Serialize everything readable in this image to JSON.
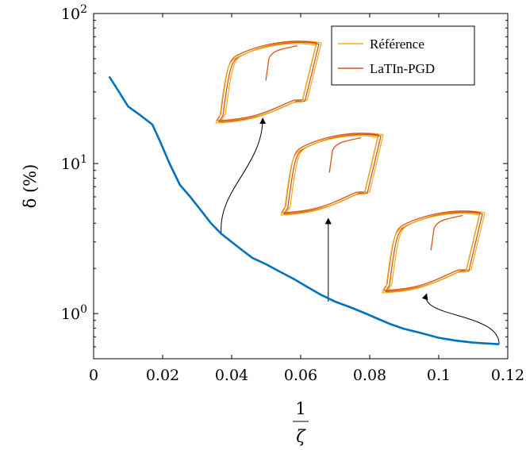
{
  "chart_data": {
    "type": "line",
    "title": "",
    "xlabel_num": "1",
    "xlabel_den": "ζ",
    "ylabel": "δ (%)",
    "x_scale": "linear",
    "y_scale": "log",
    "xlim": [
      0,
      0.12
    ],
    "ylim": [
      0.5,
      100
    ],
    "x_ticks": [
      "0",
      "0.02",
      "0.04",
      "0.06",
      "0.08",
      "0.1",
      "0.12"
    ],
    "x_tick_values": [
      0,
      0.02,
      0.04,
      0.06,
      0.08,
      0.1,
      0.12
    ],
    "y_ticks": [
      {
        "value": 1,
        "base": "10",
        "exp": "0"
      },
      {
        "value": 10,
        "base": "10",
        "exp": "1"
      },
      {
        "value": 100,
        "base": "10",
        "exp": "2"
      }
    ],
    "grid": false,
    "legend_position": "top-right",
    "series": [
      {
        "color": "#0072BD",
        "points": [
          [
            0.0045,
            38
          ],
          [
            0.007,
            31
          ],
          [
            0.01,
            24
          ],
          [
            0.0135,
            21
          ],
          [
            0.017,
            18.2
          ],
          [
            0.019,
            14.5
          ],
          [
            0.022,
            10
          ],
          [
            0.025,
            7.2
          ],
          [
            0.028,
            6
          ],
          [
            0.031,
            4.9
          ],
          [
            0.034,
            4
          ],
          [
            0.037,
            3.4
          ],
          [
            0.04,
            3
          ],
          [
            0.043,
            2.65
          ],
          [
            0.046,
            2.35
          ],
          [
            0.05,
            2.13
          ],
          [
            0.054,
            1.9
          ],
          [
            0.058,
            1.7
          ],
          [
            0.062,
            1.5
          ],
          [
            0.066,
            1.33
          ],
          [
            0.07,
            1.2
          ],
          [
            0.074,
            1.11
          ],
          [
            0.078,
            1.02
          ],
          [
            0.082,
            0.93
          ],
          [
            0.086,
            0.85
          ],
          [
            0.09,
            0.79
          ],
          [
            0.095,
            0.74
          ],
          [
            0.1,
            0.69
          ],
          [
            0.105,
            0.66
          ],
          [
            0.11,
            0.64
          ],
          [
            0.1175,
            0.625
          ]
        ]
      }
    ],
    "legend": [
      {
        "label": "Référence",
        "color": "#EDB120"
      },
      {
        "label": "LaTIn-PGD",
        "color": "#D95319"
      }
    ],
    "annotations": [
      {
        "from": [
          0.037,
          3.4
        ],
        "to": [
          0.049,
          20
        ]
      },
      {
        "from": [
          0.068,
          1.2
        ],
        "to": [
          0.068,
          4.3
        ]
      },
      {
        "from": [
          0.1175,
          0.625
        ],
        "to": [
          0.0965,
          1.35
        ]
      }
    ]
  }
}
